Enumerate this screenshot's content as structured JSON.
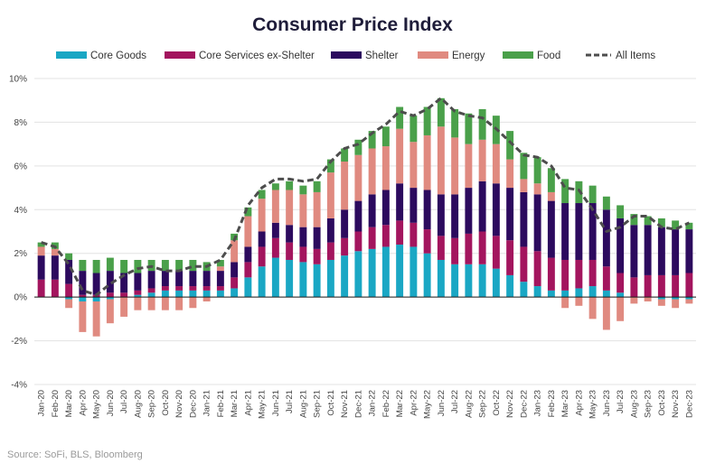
{
  "chart_data": {
    "type": "bar",
    "subtype": "stacked-bar-with-line",
    "title": "Consumer Price Index",
    "source": "Source: SoFi, BLS, Bloomberg",
    "ylim": [
      -4,
      10
    ],
    "yticks": [
      -4,
      -2,
      0,
      2,
      4,
      6,
      8,
      10
    ],
    "ytick_labels": [
      "-4%",
      "-2%",
      "0%",
      "2%",
      "4%",
      "6%",
      "8%",
      "10%"
    ],
    "gridlines": true,
    "legend_position": "top",
    "categories": [
      "Jan-20",
      "Feb-20",
      "Mar-20",
      "Apr-20",
      "May-20",
      "Jun-20",
      "Jul-20",
      "Aug-20",
      "Sep-20",
      "Oct-20",
      "Nov-20",
      "Dec-20",
      "Jan-21",
      "Feb-21",
      "Mar-21",
      "Apr-21",
      "May-21",
      "Jun-21",
      "Jul-21",
      "Aug-21",
      "Sep-21",
      "Oct-21",
      "Nov-21",
      "Dec-21",
      "Jan-22",
      "Feb-22",
      "Mar-22",
      "Apr-22",
      "May-22",
      "Jun-22",
      "Jul-22",
      "Aug-22",
      "Sep-22",
      "Oct-22",
      "Nov-22",
      "Dec-22",
      "Jan-23",
      "Feb-23",
      "Mar-23",
      "Apr-23",
      "May-23",
      "Jun-23",
      "Jul-23",
      "Aug-23",
      "Sep-23",
      "Oct-23",
      "Nov-23",
      "Dec-23"
    ],
    "series": [
      {
        "name": "Core Goods",
        "color": "#1aa7c4",
        "values": [
          0.0,
          0.0,
          -0.1,
          -0.2,
          -0.2,
          -0.1,
          0.0,
          0.1,
          0.2,
          0.3,
          0.3,
          0.3,
          0.3,
          0.3,
          0.4,
          0.9,
          1.4,
          1.8,
          1.7,
          1.6,
          1.5,
          1.7,
          1.9,
          2.1,
          2.2,
          2.3,
          2.4,
          2.3,
          2.0,
          1.7,
          1.5,
          1.5,
          1.5,
          1.3,
          1.0,
          0.7,
          0.5,
          0.3,
          0.3,
          0.4,
          0.5,
          0.3,
          0.2,
          0.0,
          0.0,
          -0.1,
          -0.1,
          -0.1
        ]
      },
      {
        "name": "Core Services ex-Shelter",
        "color": "#a3155e",
        "values": [
          0.8,
          0.8,
          0.6,
          0.1,
          0.1,
          0.2,
          0.2,
          0.2,
          0.2,
          0.2,
          0.2,
          0.2,
          0.2,
          0.2,
          0.5,
          0.7,
          0.9,
          0.9,
          0.8,
          0.7,
          0.7,
          0.8,
          0.8,
          0.9,
          1.0,
          1.0,
          1.1,
          1.1,
          1.1,
          1.1,
          1.2,
          1.4,
          1.5,
          1.5,
          1.6,
          1.6,
          1.6,
          1.5,
          1.4,
          1.3,
          1.2,
          1.1,
          0.9,
          0.9,
          1.0,
          1.0,
          1.0,
          1.1
        ]
      },
      {
        "name": "Shelter",
        "color": "#2c0a5e",
        "values": [
          1.1,
          1.1,
          1.1,
          1.1,
          1.0,
          1.0,
          0.9,
          0.8,
          0.8,
          0.7,
          0.7,
          0.7,
          0.7,
          0.7,
          0.7,
          0.7,
          0.7,
          0.7,
          0.8,
          0.9,
          1.0,
          1.1,
          1.3,
          1.4,
          1.5,
          1.6,
          1.7,
          1.6,
          1.8,
          1.9,
          2.0,
          2.1,
          2.3,
          2.4,
          2.4,
          2.5,
          2.6,
          2.6,
          2.6,
          2.6,
          2.6,
          2.6,
          2.5,
          2.4,
          2.3,
          2.2,
          2.1,
          2.0
        ]
      },
      {
        "name": "Energy",
        "color": "#e08a80",
        "values": [
          0.4,
          0.3,
          -0.4,
          -1.4,
          -1.6,
          -1.1,
          -0.9,
          -0.6,
          -0.6,
          -0.6,
          -0.6,
          -0.5,
          -0.2,
          0.2,
          1.0,
          1.4,
          1.5,
          1.5,
          1.6,
          1.5,
          1.6,
          2.1,
          2.2,
          2.1,
          2.1,
          2.0,
          2.5,
          2.1,
          2.5,
          3.1,
          2.6,
          2.0,
          1.9,
          1.8,
          1.3,
          0.6,
          0.5,
          0.4,
          -0.5,
          -0.4,
          -1.0,
          -1.5,
          -1.1,
          -0.3,
          -0.2,
          -0.3,
          -0.4,
          -0.2
        ]
      },
      {
        "name": "Food",
        "color": "#4aa04a",
        "values": [
          0.2,
          0.3,
          0.3,
          0.5,
          0.6,
          0.6,
          0.6,
          0.6,
          0.5,
          0.5,
          0.5,
          0.5,
          0.4,
          0.3,
          0.3,
          0.4,
          0.4,
          0.3,
          0.4,
          0.4,
          0.5,
          0.6,
          0.6,
          0.7,
          0.8,
          0.9,
          1.0,
          1.2,
          1.3,
          1.3,
          1.3,
          1.4,
          1.4,
          1.3,
          1.3,
          1.2,
          1.2,
          1.1,
          1.1,
          1.0,
          0.8,
          0.6,
          0.6,
          0.5,
          0.4,
          0.4,
          0.4,
          0.3
        ]
      },
      {
        "name": "All Items",
        "type": "line",
        "color": "#4d4d4d",
        "dash": true,
        "values": [
          2.5,
          2.3,
          1.5,
          0.3,
          0.1,
          0.6,
          1.0,
          1.3,
          1.4,
          1.2,
          1.2,
          1.4,
          1.4,
          1.7,
          2.6,
          4.2,
          5.0,
          5.4,
          5.4,
          5.3,
          5.4,
          6.2,
          6.8,
          7.0,
          7.5,
          7.9,
          8.5,
          8.3,
          8.6,
          9.1,
          8.5,
          8.3,
          8.2,
          7.7,
          7.1,
          6.5,
          6.4,
          6.0,
          5.0,
          4.9,
          4.0,
          3.0,
          3.2,
          3.7,
          3.7,
          3.2,
          3.1,
          3.4
        ]
      }
    ]
  }
}
